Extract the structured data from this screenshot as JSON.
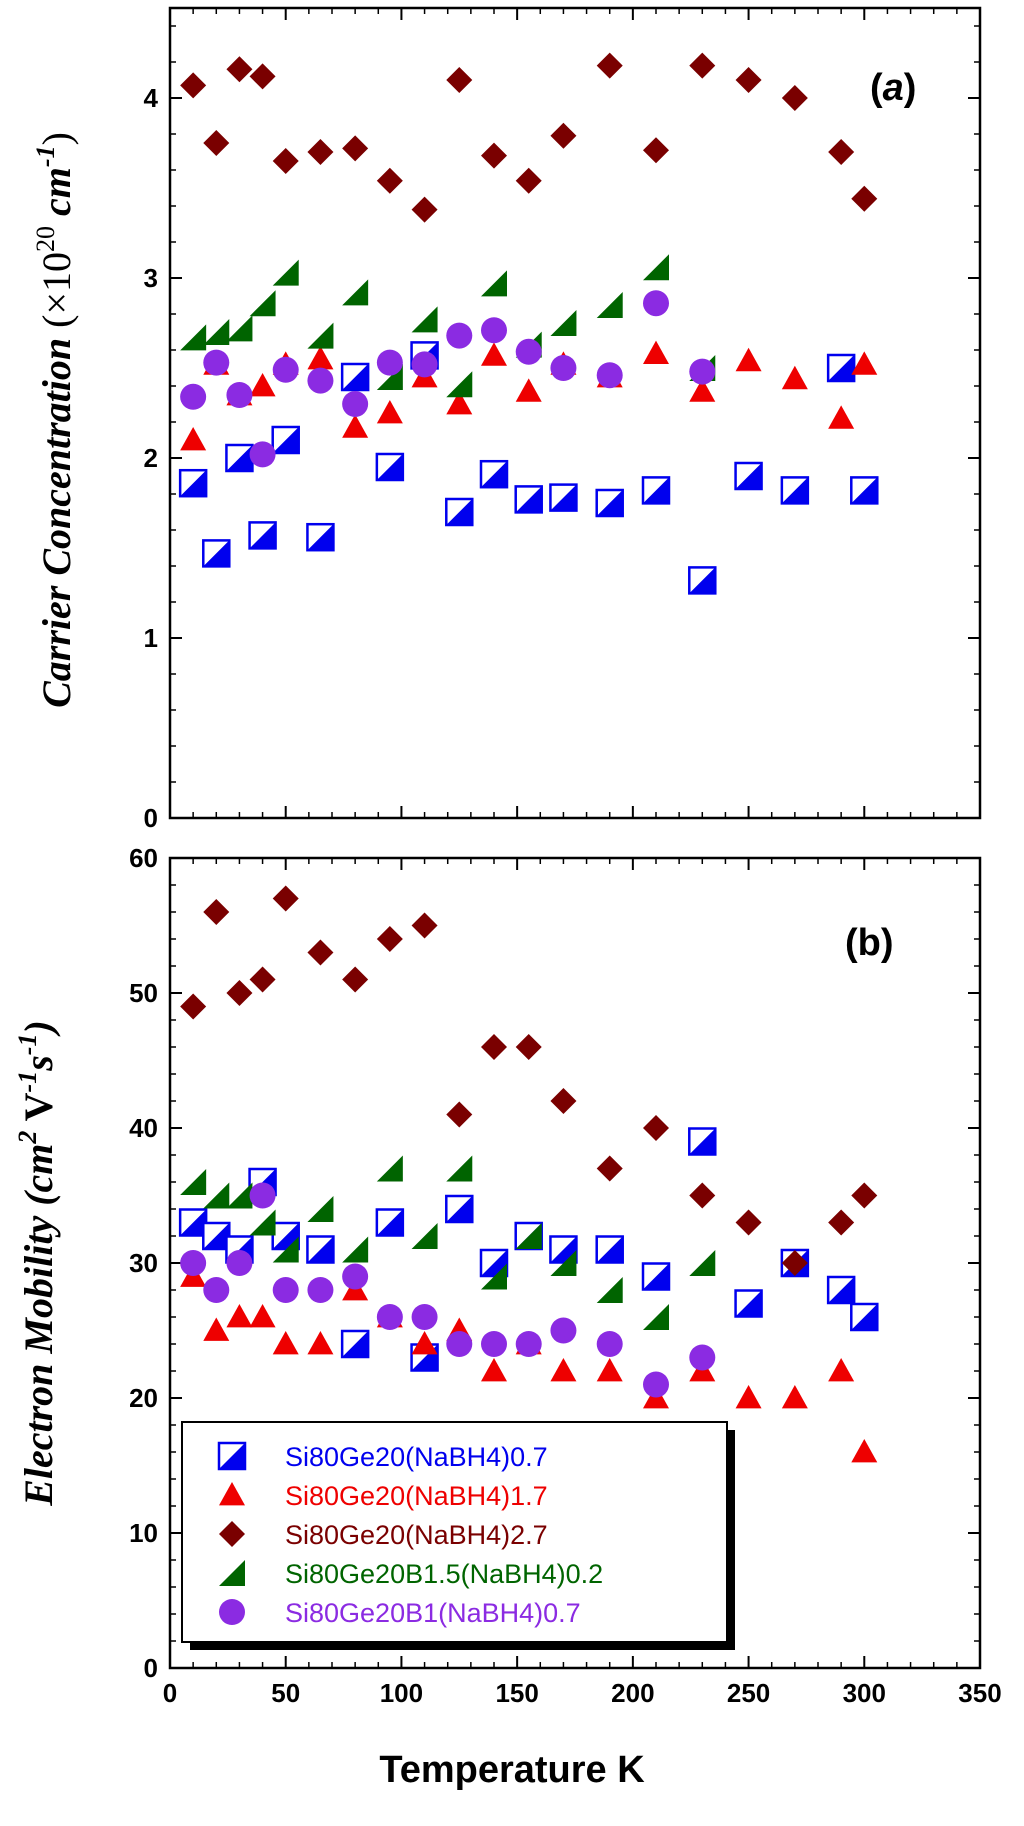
{
  "chart_data": [
    {
      "type": "scatter",
      "panel_label": "(a)",
      "ylabel": "Carrier Concentration (×10²⁰ cm⁻¹)",
      "xlabel": "",
      "xlim": [
        0,
        350
      ],
      "ylim": [
        0,
        4.5
      ],
      "xticks": [
        0,
        50,
        100,
        150,
        200,
        250,
        300,
        350
      ],
      "yticks": [
        0,
        1,
        2,
        3,
        4
      ],
      "ytick_labels": [
        "0",
        "1",
        "2",
        "3",
        "4"
      ],
      "series": [
        {
          "name": "Si80Ge20(NaBH4)0.7",
          "marker": "halfsquare",
          "color": "#0000ee",
          "x": [
            10,
            20,
            30,
            40,
            50,
            65,
            80,
            95,
            110,
            125,
            140,
            155,
            170,
            190,
            210,
            230,
            250,
            270,
            290,
            300
          ],
          "y": [
            1.86,
            1.47,
            2.0,
            1.57,
            2.1,
            1.56,
            2.45,
            1.95,
            2.57,
            1.7,
            1.91,
            1.77,
            1.78,
            1.75,
            1.82,
            1.32,
            1.9,
            1.82,
            2.5,
            1.82
          ]
        },
        {
          "name": "Si80Ge20(NaBH4)1.7",
          "marker": "triangle",
          "color": "#ee0000",
          "x": [
            10,
            20,
            30,
            40,
            50,
            65,
            80,
            95,
            110,
            125,
            140,
            155,
            170,
            190,
            210,
            230,
            250,
            270,
            290,
            300
          ],
          "y": [
            2.1,
            2.52,
            2.35,
            2.4,
            2.52,
            2.55,
            2.17,
            2.25,
            2.45,
            2.3,
            2.57,
            2.37,
            2.52,
            2.45,
            2.58,
            2.37,
            2.54,
            2.44,
            2.22,
            2.52
          ]
        },
        {
          "name": "Si80Ge20(NaBH4)2.7",
          "marker": "diamond",
          "color": "#7a0000",
          "x": [
            10,
            20,
            30,
            40,
            50,
            65,
            80,
            95,
            110,
            125,
            140,
            155,
            170,
            190,
            210,
            230,
            250,
            270,
            290,
            300
          ],
          "y": [
            4.07,
            3.75,
            4.16,
            4.12,
            3.65,
            3.7,
            3.72,
            3.54,
            3.38,
            4.1,
            3.68,
            3.54,
            3.79,
            4.18,
            3.71,
            4.18,
            4.1,
            4.0,
            3.7,
            3.44
          ]
        },
        {
          "name": "Si80Ge20B1.5(NaBH4)0.2",
          "marker": "halftriangle",
          "color": "#006400",
          "x": [
            10,
            20,
            30,
            40,
            50,
            65,
            80,
            95,
            110,
            125,
            140,
            155,
            170,
            190,
            210,
            230
          ],
          "y": [
            2.67,
            2.7,
            2.72,
            2.86,
            3.03,
            2.68,
            2.92,
            2.45,
            2.77,
            2.41,
            2.97,
            2.63,
            2.75,
            2.85,
            3.06,
            2.5
          ]
        },
        {
          "name": "Si80Ge20B1(NaBH4)0.7",
          "marker": "circle",
          "color": "#8b2be2",
          "x": [
            10,
            20,
            30,
            40,
            50,
            65,
            80,
            95,
            110,
            125,
            140,
            155,
            170,
            190,
            210,
            230
          ],
          "y": [
            2.34,
            2.53,
            2.35,
            2.02,
            2.49,
            2.43,
            2.3,
            2.53,
            2.52,
            2.68,
            2.71,
            2.59,
            2.5,
            2.46,
            2.86,
            2.48
          ]
        }
      ]
    },
    {
      "type": "scatter",
      "panel_label": "(b)",
      "ylabel": "Electron Mobility (cm² V⁻¹ s⁻¹)",
      "xlabel": "Temperature K",
      "xlim": [
        0,
        350
      ],
      "ylim": [
        0,
        60
      ],
      "xticks": [
        0,
        50,
        100,
        150,
        200,
        250,
        300,
        350
      ],
      "xtick_labels": [
        "0",
        "50",
        "100",
        "150",
        "200",
        "250",
        "300",
        "350"
      ],
      "yticks": [
        0,
        10,
        20,
        30,
        40,
        50,
        60
      ],
      "ytick_labels": [
        "0",
        "10",
        "20",
        "30",
        "40",
        "50",
        "60"
      ],
      "legend_position": "bottom-left",
      "series": [
        {
          "name": "Si80Ge20(NaBH4)0.7",
          "marker": "halfsquare",
          "color": "#0000ee",
          "x": [
            10,
            20,
            30,
            40,
            50,
            65,
            80,
            95,
            110,
            125,
            140,
            155,
            170,
            190,
            210,
            230,
            250,
            270,
            290,
            300
          ],
          "y": [
            33,
            32,
            31,
            36,
            32,
            31,
            24,
            33,
            23,
            34,
            30,
            32,
            31,
            31,
            29,
            39,
            27,
            30,
            28,
            26
          ]
        },
        {
          "name": "Si80Ge20(NaBH4)1.7",
          "marker": "triangle",
          "color": "#ee0000",
          "x": [
            10,
            20,
            30,
            40,
            50,
            65,
            80,
            95,
            110,
            125,
            140,
            155,
            170,
            190,
            210,
            230,
            250,
            270,
            290,
            300
          ],
          "y": [
            29,
            25,
            26,
            26,
            24,
            24,
            28,
            26,
            24,
            25,
            22,
            24,
            22,
            22,
            20,
            22,
            20,
            20,
            22,
            16
          ]
        },
        {
          "name": "Si80Ge20(NaBH4)2.7",
          "marker": "diamond",
          "color": "#7a0000",
          "x": [
            10,
            20,
            30,
            40,
            50,
            65,
            80,
            95,
            110,
            125,
            140,
            155,
            170,
            190,
            210,
            230,
            250,
            270,
            290,
            300
          ],
          "y": [
            49,
            56,
            50,
            51,
            57,
            53,
            51,
            54,
            55,
            41,
            46,
            46,
            42,
            37,
            40,
            35,
            33,
            30,
            33,
            35
          ]
        },
        {
          "name": "Si80Ge20B1.5(NaBH4)0.2",
          "marker": "halftriangle",
          "color": "#006400",
          "x": [
            10,
            20,
            30,
            40,
            50,
            65,
            80,
            95,
            110,
            125,
            140,
            155,
            170,
            190,
            210,
            230
          ],
          "y": [
            36,
            35,
            35,
            33,
            31,
            34,
            31,
            37,
            32,
            37,
            29,
            32,
            30,
            28,
            26,
            30
          ]
        },
        {
          "name": "Si80Ge20B1(NaBH4)0.7",
          "marker": "circle",
          "color": "#8b2be2",
          "x": [
            10,
            20,
            30,
            40,
            50,
            65,
            80,
            95,
            110,
            125,
            140,
            155,
            170,
            190,
            210,
            230
          ],
          "y": [
            30,
            28,
            30,
            35,
            28,
            28,
            29,
            26,
            26,
            24,
            24,
            24,
            25,
            24,
            21,
            23
          ]
        }
      ]
    }
  ]
}
